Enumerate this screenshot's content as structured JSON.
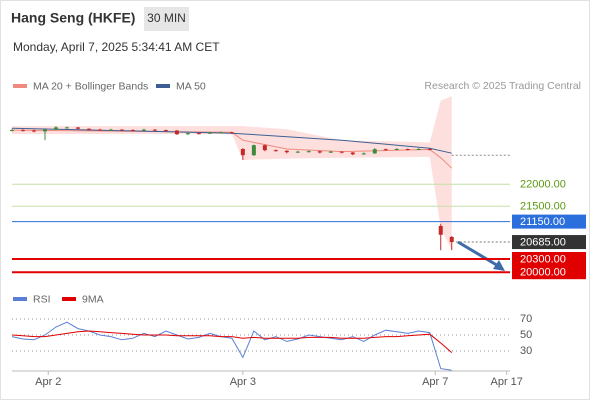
{
  "header": {
    "title": "Hang Seng (HKFE)",
    "interval": "30 MIN",
    "datetime": "Monday, April 7, 2025 5:34:41 AM CET",
    "credit": "Research © 2025 Trading Central"
  },
  "chart_data": [
    {
      "type": "candlestick",
      "up_color": "#3c8c3c",
      "down_color": "#c62828",
      "open": [
        23220,
        23230,
        23220,
        23200,
        23240,
        23290,
        23290,
        23260,
        23240,
        23230,
        23240,
        23230,
        23220,
        23240,
        23230,
        23220,
        23136,
        23160,
        23150,
        23170,
        23180,
        22800,
        22660,
        22886,
        22773,
        22760,
        22727,
        22740,
        22750,
        22720,
        22740,
        22720,
        22680,
        22700,
        22795,
        22780,
        22800,
        22790,
        22800,
        21050,
        20800
      ],
      "high": [
        23260,
        23250,
        23240,
        23270,
        23320,
        23310,
        23300,
        23270,
        23260,
        23260,
        23250,
        23250,
        23260,
        23250,
        23240,
        23230,
        23180,
        23180,
        23190,
        23200,
        23190,
        22820,
        22900,
        22900,
        22790,
        22770,
        22760,
        22770,
        22760,
        22760,
        22750,
        22730,
        22720,
        22820,
        22810,
        22820,
        22810,
        22820,
        22810,
        21100,
        20820
      ],
      "low": [
        23200,
        23200,
        23180,
        23000,
        23230,
        23270,
        23250,
        23230,
        23220,
        23220,
        23220,
        23200,
        23210,
        23210,
        23200,
        23120,
        23120,
        23130,
        23140,
        23160,
        23140,
        22550,
        22640,
        22750,
        22740,
        22700,
        22710,
        22720,
        22700,
        22710,
        22700,
        22660,
        22670,
        22690,
        22760,
        22770,
        22770,
        22780,
        22770,
        20500,
        20500
      ],
      "close": [
        23230,
        23220,
        23200,
        23240,
        23290,
        23290,
        23260,
        23240,
        23230,
        23240,
        23230,
        23220,
        23240,
        23230,
        23220,
        23136,
        23160,
        23150,
        23170,
        23180,
        23160,
        22660,
        22886,
        22773,
        22760,
        22727,
        22740,
        22750,
        22720,
        22740,
        22720,
        22680,
        22700,
        22795,
        22780,
        22800,
        22790,
        22800,
        22790,
        20850,
        20685
      ],
      "xlim": [
        0,
        45.3
      ],
      "ylim": [
        19800,
        24050
      ],
      "series": [
        {
          "name": "MA 20 + Bollinger Bands",
          "color": "#f08a80",
          "band_color": "#fde0de",
          "x": [
            0,
            20,
            21,
            25,
            30,
            38,
            39,
            40
          ],
          "values": [
            23230,
            23180,
            23000,
            22800,
            22740,
            22790,
            22600,
            22364
          ],
          "upper": [
            23320,
            23320,
            23320,
            23250,
            23000,
            22950,
            23900,
            24000
          ],
          "lower": [
            23140,
            23140,
            22550,
            22580,
            22600,
            22620,
            21000,
            20500
          ]
        },
        {
          "name": "MA 50",
          "color": "#3d5f94",
          "x": [
            0,
            20,
            30,
            38,
            40
          ],
          "values": [
            23273,
            23159,
            23000,
            22818,
            22705
          ],
          "projection": {
            "x": [
              40,
              45.3
            ],
            "values": [
              22659,
              22659
            ]
          }
        }
      ],
      "levels": [
        {
          "value": 22000,
          "label": "22000.00",
          "color": "#5a9a10",
          "line_color": "#c4e0a8",
          "box": false,
          "line": "solid"
        },
        {
          "value": 21500,
          "label": "21500.00",
          "color": "#5a9a10",
          "line_color": "#c4e0a8",
          "box": false,
          "line": "solid"
        },
        {
          "value": 21150,
          "label": "21150.00",
          "color": "#2a6fdb",
          "line_color": "#2a6fdb",
          "box": true,
          "line": "solid"
        },
        {
          "value": 20685,
          "label": "20685.00",
          "color": "#333333",
          "line_color": "#777777",
          "box": true,
          "line": "dotted"
        },
        {
          "value": 20300,
          "label": "20300.00",
          "color": "#e00000",
          "line_color": "#e00000",
          "box": true,
          "line": "bold"
        },
        {
          "value": 20000,
          "label": "20000.00",
          "color": "#e00000",
          "line_color": "#e00000",
          "box": true,
          "line": "bold"
        }
      ]
    },
    {
      "type": "line",
      "series": [
        {
          "name": "RSI",
          "color": "#5b7fd4",
          "values": [
            48,
            45,
            44,
            50,
            60,
            66,
            58,
            55,
            50,
            48,
            44,
            46,
            52,
            48,
            55,
            50,
            45,
            47,
            52,
            48,
            46,
            22,
            55,
            44,
            48,
            42,
            45,
            50,
            48,
            46,
            44,
            48,
            42,
            50,
            56,
            54,
            52,
            55,
            53,
            8,
            6
          ]
        },
        {
          "name": "9MA",
          "color": "#e00000",
          "values": [
            50,
            49,
            48,
            48,
            50,
            52,
            54,
            55,
            54,
            53,
            52,
            51,
            50,
            50,
            50,
            49,
            49,
            49,
            49,
            48,
            48,
            46,
            47,
            46,
            46,
            46,
            46,
            47,
            47,
            47,
            46,
            46,
            46,
            47,
            48,
            48,
            49,
            50,
            51,
            40,
            28
          ]
        }
      ],
      "xlim": [
        0,
        45.3
      ],
      "ylim": [
        5,
        80
      ],
      "yticks": [
        30,
        50,
        70
      ],
      "xticks": [
        {
          "value": 3.3,
          "label": "Apr 2"
        },
        {
          "value": 21,
          "label": "Apr 3"
        },
        {
          "value": 38.5,
          "label": "Apr 7"
        },
        {
          "value": 45,
          "label": "Apr 17"
        }
      ]
    }
  ]
}
